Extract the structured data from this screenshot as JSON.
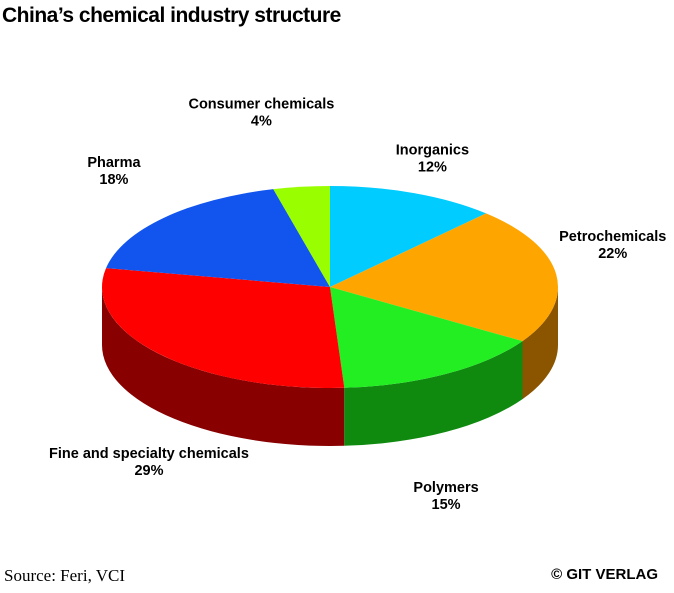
{
  "chart_data": {
    "type": "pie",
    "title": "China’s chemical industry structure",
    "slices": [
      {
        "label": "Inorganics",
        "value": 12,
        "value_label": "12%",
        "color": "#00ccff",
        "side_color": "#0088aa"
      },
      {
        "label": "Petrochemicals",
        "value": 22,
        "value_label": "22%",
        "color": "#ffa500",
        "side_color": "#8b5500"
      },
      {
        "label": "Polymers",
        "value": 15,
        "value_label": "15%",
        "color": "#22ee22",
        "side_color": "#0f8a0f"
      },
      {
        "label": "Fine and specialty chemicals",
        "value": 29,
        "value_label": "29%",
        "color": "#ff0000",
        "side_color": "#880000"
      },
      {
        "label": "Pharma",
        "value": 18,
        "value_label": "18%",
        "color": "#1155ee",
        "side_color": "#0a2f88"
      },
      {
        "label": "Consumer chemicals",
        "value": 4,
        "value_label": "4%",
        "color": "#99ff00",
        "side_color": "#5a9900"
      }
    ],
    "style": "3d",
    "legend": "none"
  },
  "footer": {
    "source": "Source: Feri, VCI",
    "copyright": "© GIT VERLAG"
  }
}
